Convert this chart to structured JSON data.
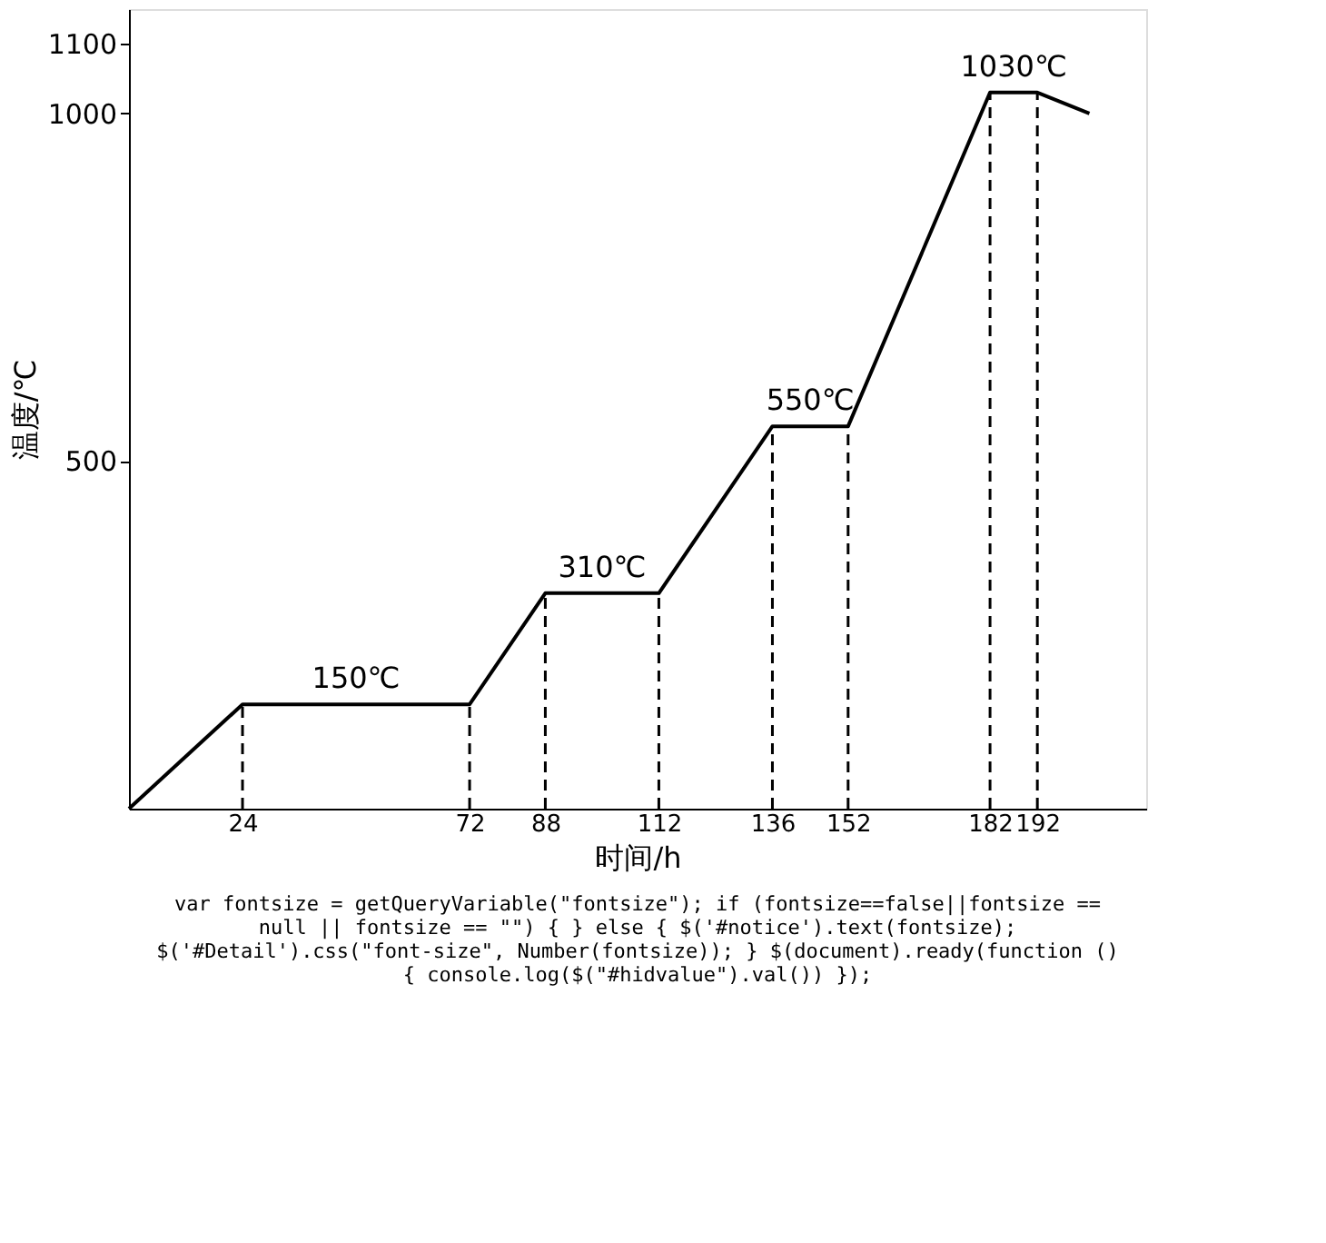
{
  "chart_data": {
    "type": "line",
    "xlabel": "时间/h",
    "ylabel": "温度/℃",
    "x": [
      0,
      24,
      72,
      88,
      112,
      136,
      152,
      182,
      192,
      203
    ],
    "series": [
      {
        "color": "#000000",
        "values": [
          0,
          150,
          150,
          310,
          310,
          550,
          550,
          1030,
          1030,
          1000
        ]
      }
    ],
    "xlim": [
      0,
      215
    ],
    "ylim": [
      0,
      1150
    ],
    "xticks": [
      24,
      72,
      88,
      112,
      136,
      152,
      182,
      192
    ],
    "yticks": [
      500,
      1000,
      1100
    ],
    "grid": false,
    "marker": "none",
    "line_style": "solid",
    "ref_lines": [
      {
        "axis": "x",
        "value": 24,
        "line_style": "dashed"
      },
      {
        "axis": "x",
        "value": 72,
        "line_style": "dashed"
      },
      {
        "axis": "x",
        "value": 88,
        "line_style": "dashed"
      },
      {
        "axis": "x",
        "value": 112,
        "line_style": "dashed"
      },
      {
        "axis": "x",
        "value": 136,
        "line_style": "dashed"
      },
      {
        "axis": "x",
        "value": 152,
        "line_style": "dashed"
      },
      {
        "axis": "x",
        "value": 182,
        "line_style": "dashed"
      },
      {
        "axis": "x",
        "value": 192,
        "line_style": "dashed"
      }
    ],
    "annotations": [
      {
        "text": "150℃",
        "x": 48,
        "y": 150
      },
      {
        "text": "310℃",
        "x": 100,
        "y": 310
      },
      {
        "text": "550℃",
        "x": 144,
        "y": 550
      },
      {
        "text": "1030℃",
        "x": 187,
        "y": 1030
      },
      "var fontsize = getQueryVariable(\"fontsize\"); if (fontsize==false||fontsize == null || fontsize == \"\") { } else { $('#notice').text(fontsize); $('#Detail').css(\"font-size\", Number(fontsize)); } $(document).ready(function () { console.log($(\"#hidvalue\").val()) });"
    ]
  }
}
